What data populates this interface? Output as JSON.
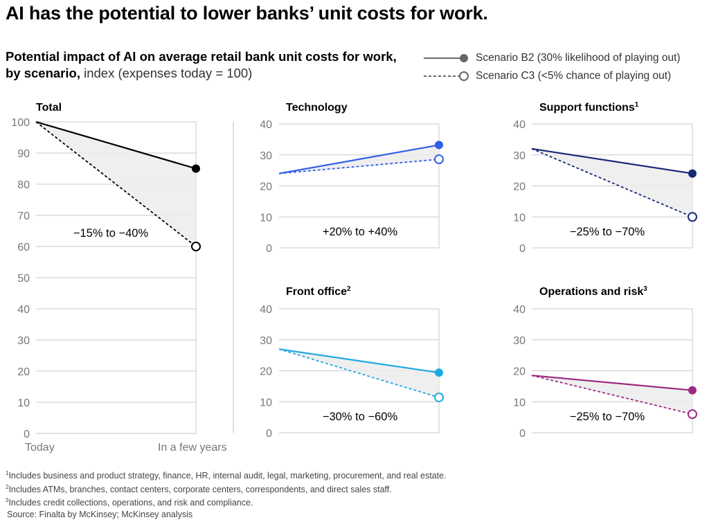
{
  "headline": "AI has the potential to lower banks’ unit costs for work.",
  "subtitle": {
    "bold": "Potential impact of AI on average retail bank unit costs for work, by scenario,",
    "unit": " index (expenses today = 100)"
  },
  "legend": {
    "b2": "Scenario B2 (30% likelihood of playing out)",
    "c3": "Scenario C3 (<5% chance of playing out)"
  },
  "footnotes": {
    "n1": "Includes business and product strategy, finance, HR, internal audit, legal, marketing, procurement, and real estate.",
    "n2": "Includes ATMs, branches, contact centers, corporate centers, correspondents, and direct sales staff.",
    "n3": "Includes credit collections, operations, and risk and compliance.",
    "source": "Source: Finalta by McKinsey; McKinsey analysis"
  },
  "chart_data": [
    {
      "type": "line",
      "panel": "total",
      "title": "Total",
      "footnote": "",
      "x": [
        "Today",
        "In a few years"
      ],
      "ylim": [
        0,
        100
      ],
      "yticks": [
        0,
        10,
        20,
        30,
        40,
        50,
        60,
        70,
        80,
        90,
        100
      ],
      "color": "#000000",
      "series": [
        {
          "name": "Scenario B2",
          "values": [
            100,
            85
          ]
        },
        {
          "name": "Scenario C3",
          "values": [
            100,
            60
          ]
        }
      ],
      "annotation": "−15% to −40%"
    },
    {
      "type": "line",
      "panel": "technology",
      "title": "Technology",
      "footnote": "",
      "x": [
        "Today",
        "In a few years"
      ],
      "ylim": [
        0,
        40
      ],
      "yticks": [
        0,
        10,
        20,
        30,
        40
      ],
      "color": "#2f5fe6",
      "series": [
        {
          "name": "Scenario B2",
          "values": [
            24,
            33.2
          ]
        },
        {
          "name": "Scenario C3",
          "values": [
            24,
            28.6
          ]
        }
      ],
      "annotation": "+20% to +40%"
    },
    {
      "type": "line",
      "panel": "support",
      "title": "Support functions",
      "footnote": "1",
      "x": [
        "Today",
        "In a few years"
      ],
      "ylim": [
        0,
        40
      ],
      "yticks": [
        0,
        10,
        20,
        30,
        40
      ],
      "color": "#172a75",
      "series": [
        {
          "name": "Scenario B2",
          "values": [
            32,
            24
          ]
        },
        {
          "name": "Scenario C3",
          "values": [
            32,
            10
          ]
        }
      ],
      "annotation": "−25% to −70%"
    },
    {
      "type": "line",
      "panel": "front-office",
      "title": "Front office",
      "footnote": "2",
      "x": [
        "Today",
        "In a few years"
      ],
      "ylim": [
        0,
        40
      ],
      "yticks": [
        0,
        10,
        20,
        30,
        40
      ],
      "color": "#1ea9e4",
      "series": [
        {
          "name": "Scenario B2",
          "values": [
            27,
            19.4
          ]
        },
        {
          "name": "Scenario C3",
          "values": [
            27,
            11.4
          ]
        }
      ],
      "annotation": "−30% to −60%"
    },
    {
      "type": "line",
      "panel": "operations-risk",
      "title": "Operations and risk",
      "footnote": "3",
      "x": [
        "Today",
        "In a few years"
      ],
      "ylim": [
        0,
        40
      ],
      "yticks": [
        0,
        10,
        20,
        30,
        40
      ],
      "color": "#9b2a83",
      "series": [
        {
          "name": "Scenario B2",
          "values": [
            18.5,
            13.7
          ]
        },
        {
          "name": "Scenario C3",
          "values": [
            18.5,
            6
          ]
        }
      ],
      "annotation": "−25% to −70%"
    }
  ]
}
